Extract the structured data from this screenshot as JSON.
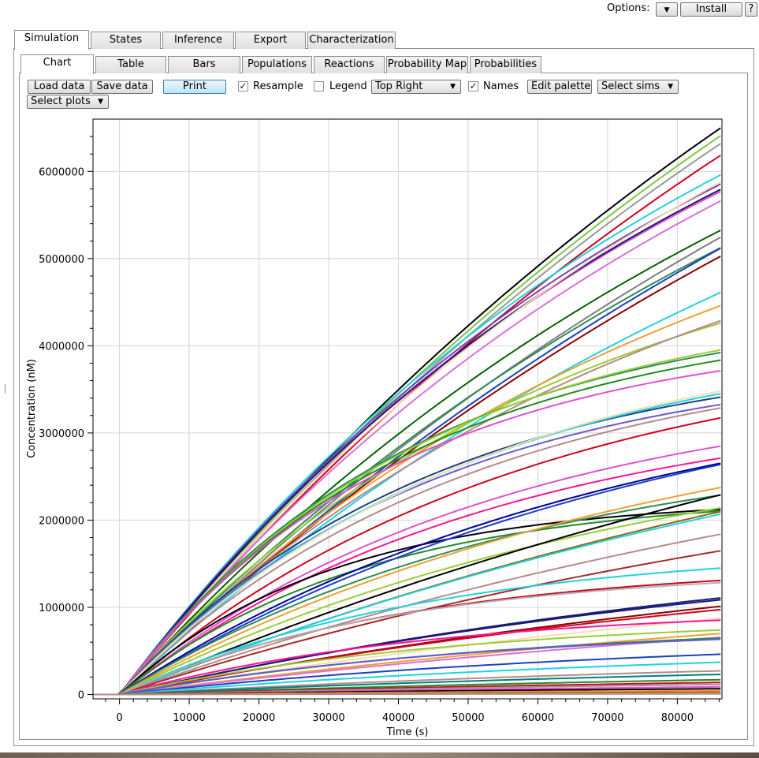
{
  "options": {
    "label": "Options:",
    "install_label": "Install",
    "help_label": "?"
  },
  "main_tabs": [
    {
      "label": "Simulation",
      "active": true
    },
    {
      "label": "States",
      "active": false
    },
    {
      "label": "Inference",
      "active": false
    },
    {
      "label": "Export",
      "active": false
    },
    {
      "label": "Characterization",
      "active": false
    }
  ],
  "sub_tabs": [
    {
      "label": "Chart",
      "active": true
    },
    {
      "label": "Table",
      "active": false
    },
    {
      "label": "Bars",
      "active": false
    },
    {
      "label": "Populations",
      "active": false
    },
    {
      "label": "Reactions",
      "active": false
    },
    {
      "label": "Probability Map",
      "active": false
    },
    {
      "label": "Probabilities",
      "active": false
    }
  ],
  "toolbar": {
    "load_label": "Load data",
    "save_label": "Save data",
    "print_label": "Print",
    "resample_label": "Resample",
    "resample_checked": true,
    "legend_label": "Legend",
    "legend_checked": false,
    "legend_position": "Top Right",
    "names_label": "Names",
    "names_checked": true,
    "edit_palette_label": "Edit palette",
    "select_sims_label": "Select sims",
    "select_plots_label": "Select plots"
  },
  "chart_data": {
    "type": "line",
    "xlabel": "Time (s)",
    "ylabel": "Concentration (nM)",
    "xlim": [
      -3800,
      86400
    ],
    "ylim": [
      -50000,
      6600000
    ],
    "xticks": [
      0,
      10000,
      20000,
      30000,
      40000,
      50000,
      60000,
      70000,
      80000
    ],
    "yticks": [
      0,
      1000000,
      2000000,
      3000000,
      4000000,
      5000000,
      6000000
    ],
    "grid": true,
    "legend": "hidden",
    "series_model": "exponential saturation y = A*(1 - exp(-t/tau)), estimated per curve",
    "series": [
      {
        "color": "#000000",
        "A": 14500000,
        "tau": 145000
      },
      {
        "color": "#7ac943",
        "A": 14300000,
        "tau": 145000
      },
      {
        "color": "#999999",
        "A": 14100000,
        "tau": 145000
      },
      {
        "color": "#d0021b",
        "A": 13800000,
        "tau": 145000
      },
      {
        "color": "#1fd3e0",
        "A": 9800000,
        "tau": 92000
      },
      {
        "color": "#7b3fb0",
        "A": 9500000,
        "tau": 90000
      },
      {
        "color": "#e04fd0",
        "A": 9300000,
        "tau": 89000
      },
      {
        "color": "#1a1a7a",
        "A": 9400000,
        "tau": 90000
      },
      {
        "color": "#f5deb3",
        "A": 10500000,
        "tau": 105000
      },
      {
        "color": "#da70d6",
        "A": 9800000,
        "tau": 100000
      },
      {
        "color": "#808080",
        "A": 12000000,
        "tau": 150000
      },
      {
        "color": "#006400",
        "A": 9800000,
        "tau": 110000
      },
      {
        "color": "#2e8b57",
        "A": 10000000,
        "tau": 120000
      },
      {
        "color": "#1f3fbf",
        "A": 12000000,
        "tau": 155000
      },
      {
        "color": "#8b0000",
        "A": 11500000,
        "tau": 150000
      },
      {
        "color": "#1fd3e0",
        "A": 9000000,
        "tau": 120000
      },
      {
        "color": "#f0a030",
        "A": 7000000,
        "tau": 85000
      },
      {
        "color": "#9acd32",
        "A": 5800000,
        "tau": 65000
      },
      {
        "color": "#b58a8a",
        "A": 6500000,
        "tau": 80000
      },
      {
        "color": "#2e8b57",
        "A": 4500000,
        "tau": 42000
      },
      {
        "color": "#9acd32",
        "A": 4600000,
        "tau": 44000
      },
      {
        "color": "#228b22",
        "A": 4400000,
        "tau": 42000
      },
      {
        "color": "#e04fd0",
        "A": 4200000,
        "tau": 40000
      },
      {
        "color": "#1f3f7f",
        "A": 4000000,
        "tau": 45000
      },
      {
        "color": "#6a5acd",
        "A": 3900000,
        "tau": 45000
      },
      {
        "color": "#1fd3e0",
        "A": 4200000,
        "tau": 50000
      },
      {
        "color": "#b58a8a",
        "A": 4000000,
        "tau": 50000
      },
      {
        "color": "#f5deb3",
        "A": 4300000,
        "tau": 52000
      },
      {
        "color": "#d0021b",
        "A": 4100000,
        "tau": 58000
      },
      {
        "color": "#e04fd0",
        "A": 3600000,
        "tau": 55000
      },
      {
        "color": "#ff1493",
        "A": 3400000,
        "tau": 54000
      },
      {
        "color": "#000000",
        "A": 2250000,
        "tau": 30000
      },
      {
        "color": "#228b22",
        "A": 2300000,
        "tau": 35000
      },
      {
        "color": "#1f3fbf",
        "A": 4000000,
        "tau": 80000
      },
      {
        "color": "#0000a0",
        "A": 3800000,
        "tau": 72000
      },
      {
        "color": "#2e8b57",
        "A": 3000000,
        "tau": 60000
      },
      {
        "color": "#f0a030",
        "A": 3600000,
        "tau": 80000
      },
      {
        "color": "#9acd32",
        "A": 3200000,
        "tau": 78000
      },
      {
        "color": "#000000",
        "A": 5500000,
        "tau": 160000
      },
      {
        "color": "#8b6914",
        "A": 4800000,
        "tau": 150000
      },
      {
        "color": "#1fd3e0",
        "A": 4500000,
        "tau": 140000
      },
      {
        "color": "#b58a8a",
        "A": 4000000,
        "tau": 140000
      },
      {
        "color": "#a52a2a",
        "A": 3400000,
        "tau": 130000
      },
      {
        "color": "#1fd3e0",
        "A": 1700000,
        "tau": 45000
      },
      {
        "color": "#d0021b",
        "A": 1500000,
        "tau": 42000
      },
      {
        "color": "#b0b0b0",
        "A": 1450000,
        "tau": 40000
      },
      {
        "color": "#1a1a7a",
        "A": 2000000,
        "tau": 110000
      },
      {
        "color": "#1a1a7a",
        "A": 2100000,
        "tau": 115000
      },
      {
        "color": "#8b0000",
        "A": 2200000,
        "tau": 140000
      },
      {
        "color": "#d0021b",
        "A": 1900000,
        "tau": 120000
      },
      {
        "color": "#f5deb3",
        "A": 2000000,
        "tau": 150000
      },
      {
        "color": "#ff1493",
        "A": 1000000,
        "tau": 45000
      },
      {
        "color": "#9acd32",
        "A": 900000,
        "tau": 50000
      },
      {
        "color": "#f0a030",
        "A": 1600000,
        "tau": 150000
      },
      {
        "color": "#da70d6",
        "A": 1500000,
        "tau": 150000
      },
      {
        "color": "#2e8b57",
        "A": 850000,
        "tau": 60000
      },
      {
        "color": "#6a5acd",
        "A": 800000,
        "tau": 55000
      },
      {
        "color": "#1f3fbf",
        "A": 700000,
        "tau": 80000
      },
      {
        "color": "#1fd3e0",
        "A": 600000,
        "tau": 90000
      },
      {
        "color": "#b58a8a",
        "A": 500000,
        "tau": 110000
      },
      {
        "color": "#008080",
        "A": 450000,
        "tau": 120000
      },
      {
        "color": "#228b22",
        "A": 350000,
        "tau": 130000
      },
      {
        "color": "#d0021b",
        "A": 300000,
        "tau": 140000
      },
      {
        "color": "#999999",
        "A": 250000,
        "tau": 140000
      },
      {
        "color": "#e04fd0",
        "A": 200000,
        "tau": 150000
      },
      {
        "color": "#000000",
        "A": 150000,
        "tau": 150000
      },
      {
        "color": "#f0a030",
        "A": 100000,
        "tau": 150000
      },
      {
        "color": "#d0021b",
        "A": 60000,
        "tau": 150000
      },
      {
        "color": "#9acd32",
        "A": 40000,
        "tau": 150000
      },
      {
        "color": "#b58a8a",
        "A": 20000,
        "tau": 150000
      }
    ]
  }
}
